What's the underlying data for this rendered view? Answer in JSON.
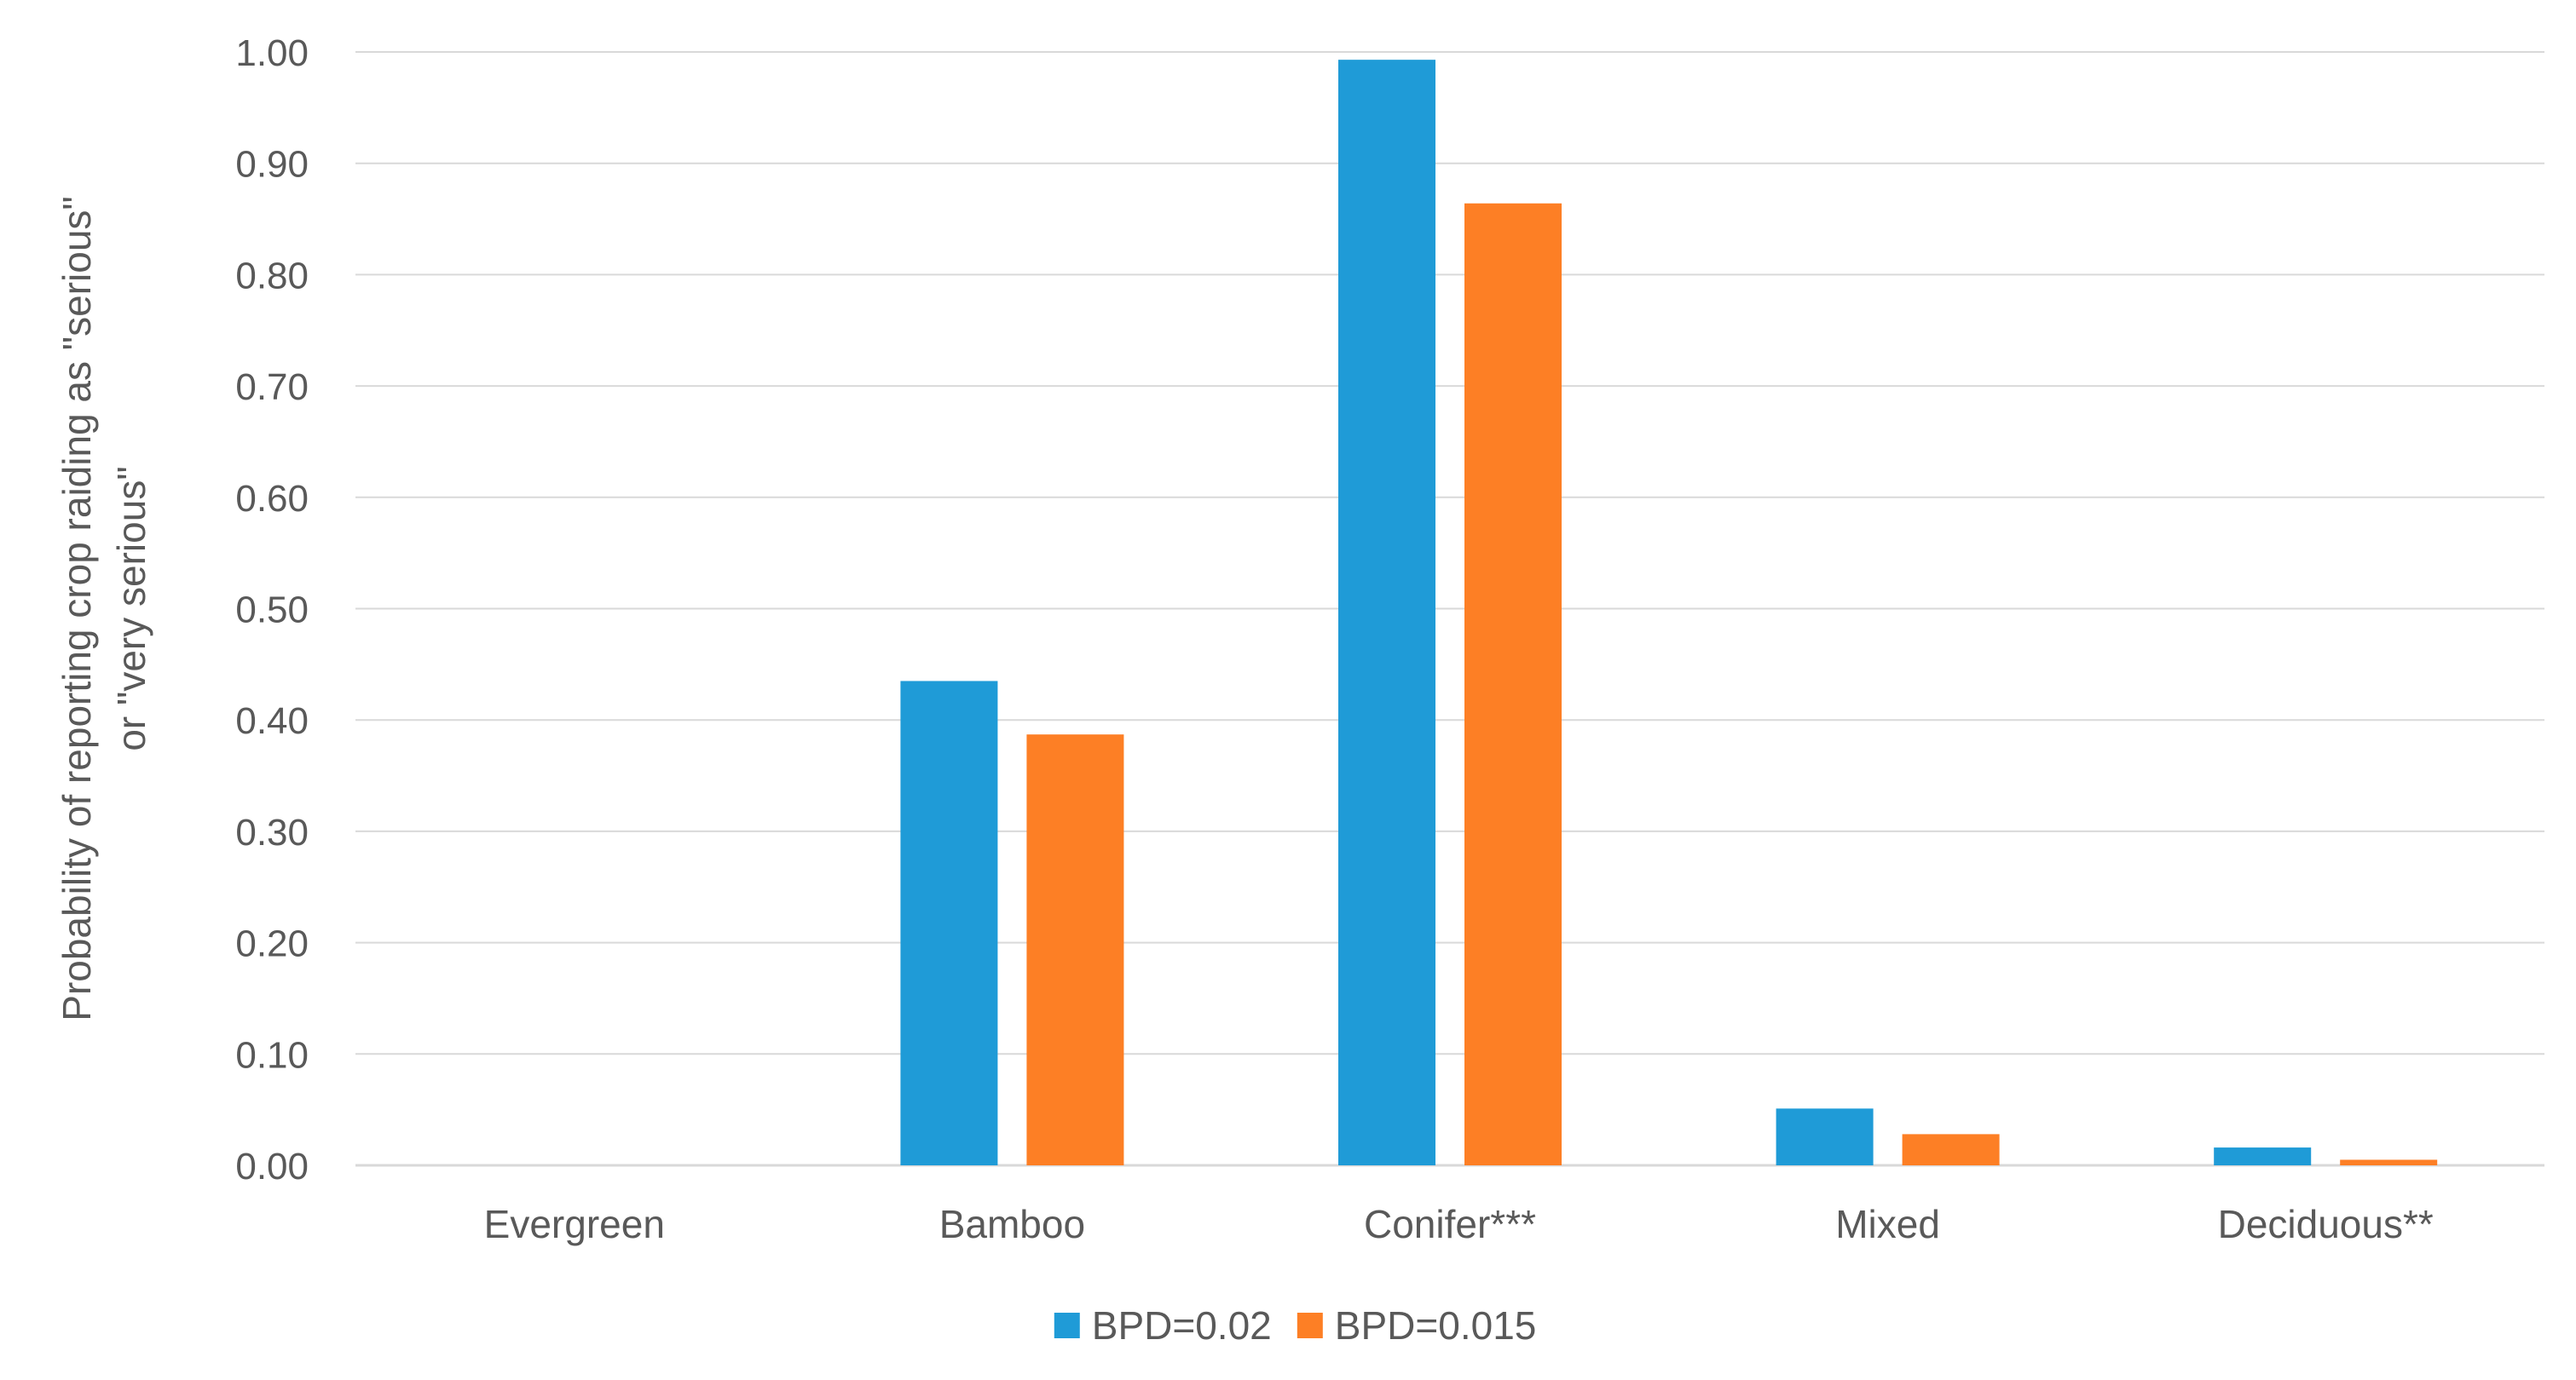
{
  "chart_data": {
    "type": "bar",
    "title": "",
    "xlabel": "",
    "ylabel": "Probability of reporting crop raiding as \"serious\" or \"very serious\"",
    "ylabel_lines": [
      "Probability of reporting crop raiding as \"serious\"",
      "or \"very serious\""
    ],
    "categories": [
      "Evergreen",
      "Bamboo",
      "Conifer***",
      "Mixed",
      "Deciduous**"
    ],
    "series": [
      {
        "name": "BPD=0.02",
        "color": "#1f9bd7",
        "values": [
          0.0,
          0.435,
          0.993,
          0.051,
          0.016
        ]
      },
      {
        "name": "BPD=0.015",
        "color": "#fd7f25",
        "values": [
          0.0,
          0.387,
          0.864,
          0.028,
          0.005
        ]
      }
    ],
    "ylim": [
      0,
      1.0
    ],
    "yticks": [
      "0.00",
      "0.10",
      "0.20",
      "0.30",
      "0.40",
      "0.50",
      "0.60",
      "0.70",
      "0.80",
      "0.90",
      "1.00"
    ],
    "grid": true,
    "legend_position": "bottom"
  }
}
